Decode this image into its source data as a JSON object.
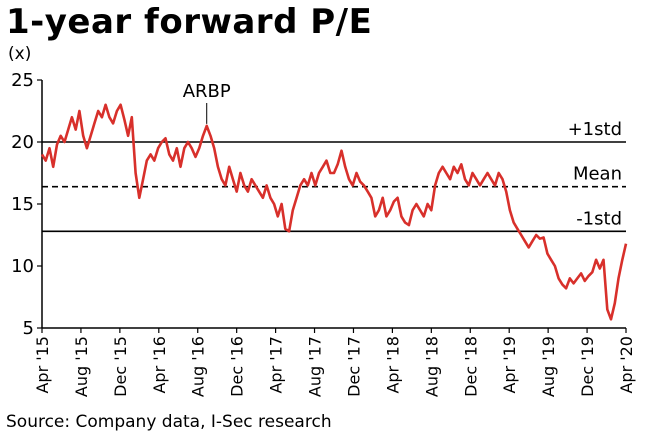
{
  "title": "1-year forward P/E",
  "unit": "(x)",
  "source": "Source: Company data, I-Sec research",
  "chart_data": {
    "type": "line",
    "title": "1-year forward P/E",
    "ylim": [
      5,
      25
    ],
    "yticks": [
      5,
      10,
      15,
      20,
      25
    ],
    "xticks": [
      "Apr '15",
      "Aug '15",
      "Dec '15",
      "Apr '16",
      "Aug '16",
      "Dec '16",
      "Apr '17",
      "Aug '17",
      "Dec '17",
      "Apr '18",
      "Aug '18",
      "Dec '18",
      "Apr '19",
      "Aug '19",
      "Dec '19",
      "Apr '20"
    ],
    "series": [
      {
        "name": "ARBP",
        "values": [
          19.0,
          18.5,
          19.5,
          18.0,
          19.8,
          20.5,
          20.0,
          21.0,
          22.0,
          21.0,
          22.5,
          20.5,
          19.5,
          20.5,
          21.5,
          22.5,
          22.0,
          23.0,
          22.0,
          21.5,
          22.5,
          23.0,
          21.8,
          20.5,
          22.0,
          17.5,
          15.5,
          17.0,
          18.5,
          19.0,
          18.5,
          19.5,
          20.0,
          20.3,
          19.0,
          18.5,
          19.5,
          18.0,
          19.5,
          20.0,
          19.5,
          18.8,
          19.5,
          20.5,
          21.3,
          20.5,
          19.5,
          18.0,
          17.0,
          16.5,
          18.0,
          17.0,
          16.0,
          17.5,
          16.5,
          16.0,
          17.0,
          16.5,
          16.0,
          15.5,
          16.5,
          15.5,
          15.0,
          14.0,
          15.0,
          13.0,
          12.8,
          14.5,
          15.5,
          16.5,
          17.0,
          16.5,
          17.5,
          16.5,
          17.5,
          18.0,
          18.5,
          17.5,
          17.5,
          18.2,
          19.3,
          18.0,
          17.0,
          16.5,
          17.5,
          16.8,
          16.5,
          16.0,
          15.5,
          14.0,
          14.5,
          15.5,
          14.0,
          14.5,
          15.2,
          15.5,
          14.0,
          13.5,
          13.3,
          14.5,
          15.0,
          14.5,
          14.0,
          15.0,
          14.5,
          16.5,
          17.5,
          18.0,
          17.5,
          17.0,
          18.0,
          17.5,
          18.2,
          17.0,
          16.5,
          17.5,
          17.0,
          16.5,
          17.0,
          17.5,
          17.0,
          16.5,
          17.5,
          17.0,
          16.0,
          14.5,
          13.5,
          13.0,
          12.5,
          12.0,
          11.5,
          12.0,
          12.5,
          12.2,
          12.3,
          11.0,
          10.5,
          10.0,
          9.0,
          8.5,
          8.2,
          9.0,
          8.6,
          9.0,
          9.4,
          8.8,
          9.2,
          9.5,
          10.5,
          9.8,
          10.5,
          6.5,
          5.7,
          7.0,
          9.0,
          10.5,
          11.8
        ]
      }
    ],
    "reference_lines": [
      {
        "label": "+1std",
        "value": 20.0,
        "style": "solid"
      },
      {
        "label": "Mean",
        "value": 16.4,
        "style": "dashed"
      },
      {
        "label": "-1std",
        "value": 12.8,
        "style": "solid"
      }
    ],
    "annotations": [
      {
        "text": "ARBP",
        "x_index": 44
      }
    ],
    "grid": false,
    "line_color": "#d8302b",
    "ref_line_color": "#000000"
  }
}
